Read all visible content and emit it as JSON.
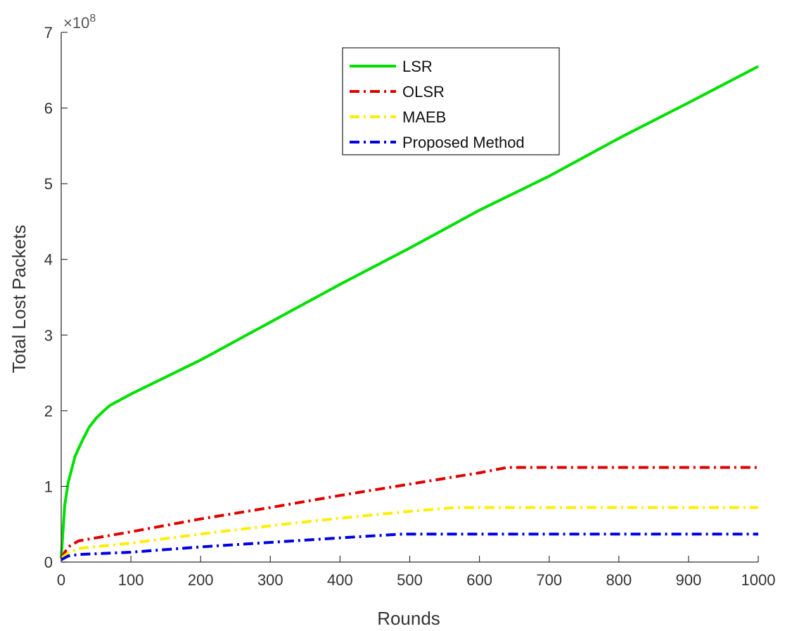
{
  "chart_data": {
    "type": "line",
    "xlabel": "Rounds",
    "ylabel": "Total Lost Packets",
    "y_multiplier_base": "×10",
    "y_multiplier_exp": "8",
    "xlim": [
      0,
      1000
    ],
    "ylim": [
      0,
      7
    ],
    "x_ticks": [
      0,
      100,
      200,
      300,
      400,
      500,
      600,
      700,
      800,
      900,
      1000
    ],
    "y_ticks": [
      0,
      1,
      2,
      3,
      4,
      5,
      6,
      7
    ],
    "grid": false,
    "legend_position": "top-center",
    "series": [
      {
        "name": "LSR",
        "color": "#00e000",
        "style": "solid",
        "x": [
          0,
          5,
          10,
          20,
          30,
          40,
          50,
          60,
          70,
          100,
          200,
          300,
          400,
          500,
          600,
          700,
          800,
          900,
          1000
        ],
        "y": [
          0.05,
          0.75,
          1.05,
          1.4,
          1.6,
          1.78,
          1.9,
          1.99,
          2.07,
          2.22,
          2.67,
          3.17,
          3.67,
          4.15,
          4.65,
          5.1,
          5.6,
          6.07,
          6.55
        ]
      },
      {
        "name": "OLSR",
        "color": "#e00000",
        "style": "dashdot",
        "x": [
          0,
          10,
          25,
          100,
          200,
          300,
          400,
          500,
          600,
          640,
          700,
          800,
          900,
          1000
        ],
        "y": [
          0.05,
          0.2,
          0.28,
          0.4,
          0.57,
          0.72,
          0.88,
          1.03,
          1.18,
          1.25,
          1.25,
          1.25,
          1.25,
          1.25
        ]
      },
      {
        "name": "MAEB",
        "color": "#ffee00",
        "style": "dashdot",
        "x": [
          0,
          10,
          25,
          100,
          200,
          300,
          400,
          500,
          565,
          600,
          700,
          800,
          900,
          1000
        ],
        "y": [
          0.05,
          0.12,
          0.18,
          0.25,
          0.37,
          0.48,
          0.58,
          0.67,
          0.72,
          0.72,
          0.72,
          0.72,
          0.72,
          0.72
        ]
      },
      {
        "name": "Proposed Method",
        "color": "#0000e0",
        "style": "dashdot",
        "x": [
          0,
          10,
          25,
          100,
          200,
          300,
          400,
          490,
          500,
          600,
          700,
          800,
          900,
          1000
        ],
        "y": [
          0.03,
          0.08,
          0.1,
          0.13,
          0.2,
          0.26,
          0.32,
          0.37,
          0.37,
          0.37,
          0.37,
          0.37,
          0.37,
          0.37
        ]
      }
    ]
  }
}
